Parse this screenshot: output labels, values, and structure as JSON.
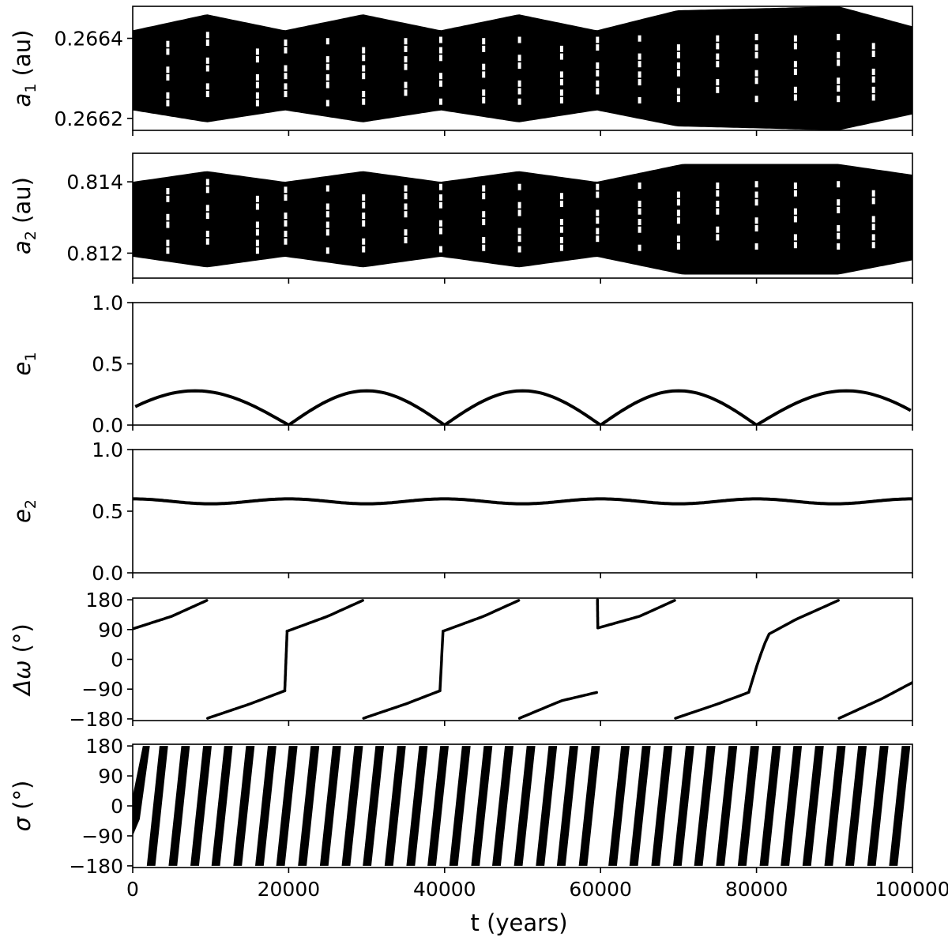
{
  "chart_data": [
    {
      "type": "scatter",
      "ylabel": "a1 (au)",
      "ylabel_main": "a",
      "ylabel_sub": "1",
      "ylabel_unit": " (au)",
      "xlim": [
        0,
        100000
      ],
      "ylim": [
        0.26617,
        0.26648
      ],
      "yticks": [
        0.2662,
        0.2664
      ],
      "ytick_labels": [
        "0.2662",
        "0.2664"
      ],
      "series": [
        {
          "style": "dense-band",
          "envelope_x": [
            0,
            9500,
            19500,
            29500,
            39500,
            49500,
            59500,
            69800,
            90500,
            100000
          ],
          "envelope_upper": [
            0.26642,
            0.26646,
            0.26642,
            0.26646,
            0.26642,
            0.26646,
            0.26642,
            0.26647,
            0.26648,
            0.26643
          ],
          "envelope_lower": [
            0.26622,
            0.26619,
            0.26622,
            0.26619,
            0.26622,
            0.26619,
            0.26622,
            0.26618,
            0.26617,
            0.26621
          ]
        }
      ]
    },
    {
      "type": "scatter",
      "ylabel": "a2 (au)",
      "ylabel_main": "a",
      "ylabel_sub": "2",
      "ylabel_unit": " (au)",
      "xlim": [
        0,
        100000
      ],
      "ylim": [
        0.8113,
        0.8148
      ],
      "yticks": [
        0.812,
        0.814
      ],
      "ytick_labels": [
        "0.812",
        "0.814"
      ],
      "series": [
        {
          "style": "dense-band",
          "envelope_x": [
            0,
            9500,
            19500,
            29500,
            39500,
            49500,
            59500,
            70500,
            90500,
            100000
          ],
          "envelope_upper": [
            0.814,
            0.8143,
            0.814,
            0.8143,
            0.814,
            0.8143,
            0.814,
            0.8145,
            0.8145,
            0.8142
          ],
          "envelope_lower": [
            0.8119,
            0.8116,
            0.8119,
            0.8116,
            0.8119,
            0.8116,
            0.8119,
            0.8114,
            0.8114,
            0.8118
          ]
        }
      ]
    },
    {
      "type": "line",
      "ylabel": "e1",
      "ylabel_main": "e",
      "ylabel_sub": "1",
      "ylabel_unit": "",
      "xlim": [
        0,
        100000
      ],
      "ylim": [
        0,
        1
      ],
      "yticks": [
        0,
        0.5,
        1
      ],
      "ytick_labels": [
        "0.0",
        "0.5",
        "1.0"
      ],
      "series": [
        {
          "style": "arches",
          "zeros_x": [
            -4000,
            20000,
            40000,
            60000,
            80000,
            103000
          ],
          "peak": 0.28
        }
      ]
    },
    {
      "type": "line",
      "ylabel": "e2",
      "ylabel_main": "e",
      "ylabel_sub": "2",
      "ylabel_unit": "",
      "xlim": [
        0,
        100000
      ],
      "ylim": [
        0,
        1
      ],
      "yticks": [
        0,
        0.5,
        1
      ],
      "ytick_labels": [
        "0.0",
        "0.5",
        "1.0"
      ],
      "series": [
        {
          "style": "oscillation",
          "mean": 0.58,
          "amplitude": 0.02,
          "period": 20000,
          "phase_x": 0
        }
      ]
    },
    {
      "type": "scatter",
      "ylabel": "Δω (°)",
      "ylabel_main": "Δω",
      "ylabel_sub": "",
      "ylabel_unit": " (°)",
      "xlim": [
        0,
        100000
      ],
      "ylim": [
        -185,
        185
      ],
      "yticks": [
        -180,
        -90,
        0,
        90,
        180
      ],
      "ytick_labels": [
        "−180",
        "−90",
        "0",
        "90",
        "180"
      ],
      "segments": [
        {
          "x": [
            0,
            5000,
            9500
          ],
          "y": [
            92,
            130,
            178
          ]
        },
        {
          "x": [
            9600,
            15000,
            19500
          ],
          "y": [
            -178,
            -135,
            -95
          ]
        },
        {
          "x": [
            19500,
            19800
          ],
          "y": [
            -95,
            85
          ]
        },
        {
          "x": [
            19800,
            25000,
            29500
          ],
          "y": [
            85,
            130,
            178
          ]
        },
        {
          "x": [
            29600,
            35000,
            39400
          ],
          "y": [
            -178,
            -135,
            -95
          ]
        },
        {
          "x": [
            39400,
            39800
          ],
          "y": [
            -95,
            85
          ]
        },
        {
          "x": [
            39800,
            45000,
            49500
          ],
          "y": [
            85,
            130,
            178
          ]
        },
        {
          "x": [
            49600,
            55000,
            59500
          ],
          "y": [
            -178,
            -125,
            -100
          ]
        },
        {
          "x": [
            59600,
            59650
          ],
          "y": [
            180,
            95
          ]
        },
        {
          "x": [
            59700,
            65000,
            69500
          ],
          "y": [
            95,
            130,
            178
          ]
        },
        {
          "x": [
            69600,
            75000,
            79000,
            80300,
            81500,
            85000,
            90500
          ],
          "y": [
            -178,
            -135,
            -100,
            0,
            75,
            120,
            178
          ]
        },
        {
          "x": [
            90600,
            96000,
            100000
          ],
          "y": [
            -178,
            -120,
            -70
          ]
        }
      ]
    },
    {
      "type": "scatter",
      "ylabel": "σ (°)",
      "ylabel_main": "σ",
      "ylabel_sub": "",
      "ylabel_unit": " (°)",
      "xlim": [
        0,
        100000
      ],
      "ylim": [
        -185,
        185
      ],
      "yticks": [
        -180,
        -90,
        0,
        90,
        180
      ],
      "ytick_labels": [
        "−180",
        "−90",
        "0",
        "90",
        "180"
      ],
      "series": [
        {
          "style": "circulation",
          "y_start": -180,
          "y_end": 180,
          "band_starts_x": [
            1800,
            4600,
            7400,
            10100,
            12900,
            15700,
            18400,
            21200,
            24000,
            26800,
            29500,
            32300,
            35100,
            37800,
            40600,
            43400,
            46100,
            48900,
            51700,
            54400,
            57200,
            61000,
            63700,
            66500,
            69300,
            72000,
            74800,
            77600,
            80400,
            83100,
            85900,
            88700,
            91400,
            94200,
            97000
          ]
        }
      ]
    }
  ],
  "xaxis": {
    "label": "t (years)",
    "ticks": [
      0,
      20000,
      40000,
      60000,
      80000,
      100000
    ],
    "tick_labels": [
      "0",
      "20000",
      "40000",
      "60000",
      "80000",
      "100000"
    ]
  }
}
